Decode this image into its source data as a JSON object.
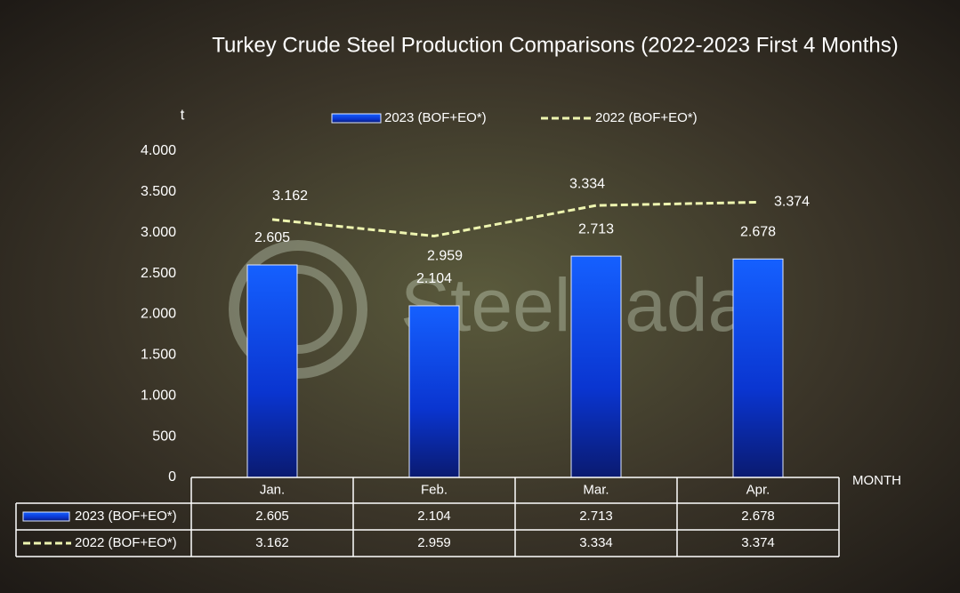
{
  "chart_data": {
    "type": "bar_line",
    "title": "Turkey Crude Steel Production Comparisons (2022-2023 First 4 Months)",
    "y_axis_label": "t",
    "x_axis_label": "MONTH",
    "watermark": "SteelRadar",
    "categories": [
      "Jan.",
      "Feb.",
      "Mar.",
      "Apr."
    ],
    "series": [
      {
        "name": "2023 (BOF+EO*)",
        "type": "bar",
        "color": "#0b3fe0",
        "values": [
          2605,
          2104,
          2713,
          2678
        ],
        "value_labels": [
          "2.605",
          "2.104",
          "2.713",
          "2.678"
        ]
      },
      {
        "name": "2022 (BOF+EO*)",
        "type": "line",
        "color": "#eef5b0",
        "values": [
          3162,
          2959,
          3334,
          3374
        ],
        "value_labels": [
          "3.162",
          "2.959",
          "3.334",
          "3.374"
        ]
      }
    ],
    "ylim": [
      0,
      4000
    ],
    "yticks": [
      0,
      {
        "value": 500,
        "label": "500"
      },
      {
        "value": 1000,
        "label": "1.000"
      },
      {
        "value": 1500,
        "label": "1.500"
      },
      {
        "value": 2000,
        "label": "2.000"
      },
      {
        "value": 2500,
        "label": "2.500"
      },
      {
        "value": 3000,
        "label": "3.000"
      },
      {
        "value": 3500,
        "label": "3.500"
      },
      {
        "value": 4000,
        "label": "4.000"
      }
    ],
    "legend": "top",
    "data_table": true
  }
}
